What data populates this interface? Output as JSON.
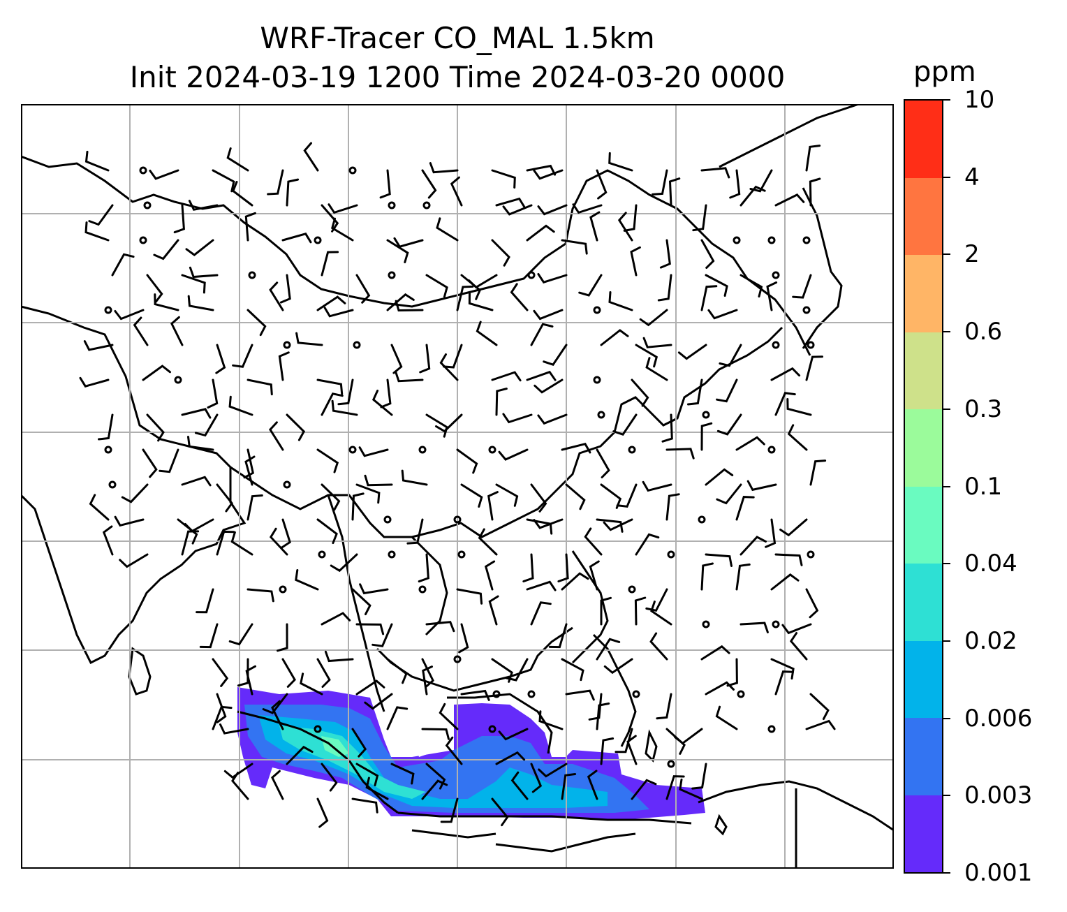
{
  "title": {
    "line1": "WRF-Tracer CO_MAL 1.5km",
    "line2": "Init 2024-03-19 1200 Time 2024-03-20 0000"
  },
  "colorbar": {
    "unit": "ppm",
    "levels": [
      "0.001",
      "0.003",
      "0.006",
      "0.02",
      "0.04",
      "0.1",
      "0.3",
      "0.6",
      "2",
      "4",
      "10"
    ],
    "colors": [
      "#652bfa",
      "#3374f2",
      "#02b3ea",
      "#2ee0d4",
      "#6afbc0",
      "#9bfb9b",
      "#cee18a",
      "#ffb566",
      "#ff7540",
      "#ff2e17"
    ]
  },
  "map": {
    "type": "wind barbs over CO tracer concentration",
    "gridlines": true,
    "calm_marker": "circle"
  }
}
